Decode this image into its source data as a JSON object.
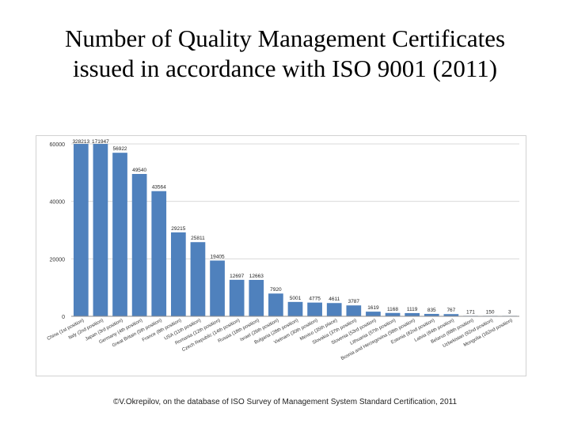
{
  "slide": {
    "title": "Number of Quality Management Certificates issued in accordance with ISO 9001 (2011)",
    "caption": "©V.Okrepilov, on the database of ISO Survey of Management System Standard Certification, 2011"
  },
  "chart_data": {
    "type": "bar",
    "title": "",
    "xlabel": "",
    "ylabel": "",
    "ylim": [
      0,
      60000
    ],
    "yticks": [
      0,
      20000,
      40000,
      60000
    ],
    "grid": true,
    "bar_color": "#4f81bd",
    "categories": [
      "China (1st position)",
      "Italy (2nd position)",
      "Japan (3rd position)",
      "Germany (4th position)",
      "Great Britain (5th position)",
      "France (8th position)",
      "USA (11th position)",
      "Romania (12th position)",
      "Czech Republic (14th position)",
      "Russia (18th position)",
      "Israel (26th position)",
      "Bulgaria (28th position)",
      "Vietnam (30th position)",
      "Mexico (35th place)",
      "Slovakia (37th position)",
      "Slovenia (53rd position)",
      "Lithuania (57th position)",
      "Bosnia and Herzegovina (58th position)",
      "Estonia (62nd position)",
      "Latvia (64th position)",
      "Belarus (68th position)",
      "Uzbekistan (92nd position)",
      "Mongolia (162nd position)"
    ],
    "value_labels": [
      "328213",
      "171947",
      "56922",
      "49540",
      "43564",
      "29215",
      "25811",
      "19405",
      "12697",
      "12663",
      "7920",
      "5001",
      "4775",
      "4611",
      "3787",
      "1619",
      "1168",
      "1119",
      "835",
      "767",
      "171",
      "150",
      "3"
    ],
    "values": [
      328213,
      171947,
      56922,
      49540,
      43564,
      29215,
      25811,
      19405,
      12697,
      12663,
      7920,
      5001,
      4775,
      4611,
      3787,
      1619,
      1168,
      1119,
      835,
      767,
      171,
      150,
      3
    ]
  }
}
